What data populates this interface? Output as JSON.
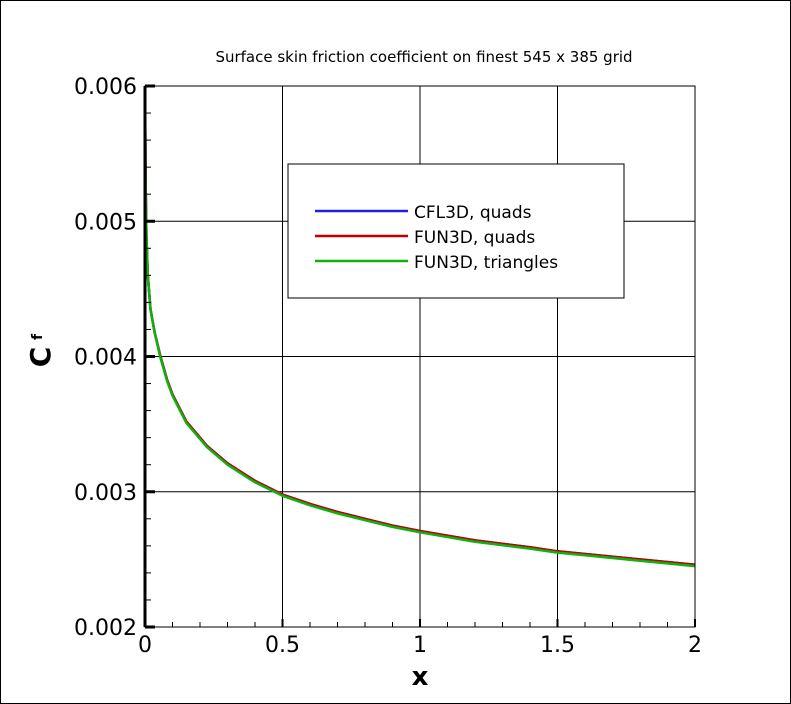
{
  "chart_data": {
    "type": "line",
    "title": "Surface skin friction coefficient on finest 545 x 385 grid",
    "xlabel": "x",
    "ylabel": "C",
    "ylabel_subscript": "f",
    "xlim": [
      0,
      2
    ],
    "ylim": [
      0.002,
      0.006
    ],
    "x_ticks": [
      "0",
      "0.5",
      "1",
      "1.5",
      "2"
    ],
    "y_ticks": [
      "0.002",
      "0.003",
      "0.004",
      "0.005",
      "0.006"
    ],
    "grid": true,
    "legend_position": "top-right",
    "series": [
      {
        "name": "CFL3D, quads",
        "color": "#2020e0",
        "x": [
          0.0,
          0.002,
          0.005,
          0.01,
          0.02,
          0.035,
          0.055,
          0.08,
          0.1,
          0.15,
          0.225,
          0.3,
          0.4,
          0.5,
          0.6,
          0.7,
          0.8,
          0.9,
          1.0,
          1.2,
          1.4,
          1.5,
          1.6,
          1.8,
          2.0
        ],
        "y": [
          0.006,
          0.0053,
          0.0049,
          0.0046,
          0.00435,
          0.00418,
          0.00401,
          0.00383,
          0.00372,
          0.00352,
          0.00334,
          0.00321,
          0.00308,
          0.00298,
          0.00291,
          0.00285,
          0.0028,
          0.00275,
          0.00271,
          0.00264,
          0.00259,
          0.00256,
          0.00254,
          0.0025,
          0.00246
        ]
      },
      {
        "name": "FUN3D, quads",
        "color": "#c00000",
        "x": [
          0.0,
          0.002,
          0.005,
          0.01,
          0.02,
          0.035,
          0.055,
          0.08,
          0.1,
          0.15,
          0.225,
          0.3,
          0.4,
          0.5,
          0.6,
          0.7,
          0.8,
          0.9,
          1.0,
          1.2,
          1.4,
          1.5,
          1.6,
          1.8,
          2.0
        ],
        "y": [
          0.006,
          0.0053,
          0.0049,
          0.0046,
          0.00435,
          0.00418,
          0.00401,
          0.00383,
          0.00372,
          0.00352,
          0.00334,
          0.00321,
          0.00308,
          0.00298,
          0.00291,
          0.00285,
          0.0028,
          0.00275,
          0.00271,
          0.00264,
          0.00259,
          0.00256,
          0.00254,
          0.0025,
          0.00246
        ]
      },
      {
        "name": "FUN3D, triangles",
        "color": "#10b010",
        "x": [
          0.0,
          0.002,
          0.005,
          0.01,
          0.02,
          0.035,
          0.055,
          0.08,
          0.1,
          0.15,
          0.225,
          0.3,
          0.4,
          0.5,
          0.6,
          0.7,
          0.8,
          0.9,
          1.0,
          1.2,
          1.4,
          1.5,
          1.6,
          1.8,
          2.0
        ],
        "y": [
          0.006,
          0.0053,
          0.0049,
          0.0046,
          0.00435,
          0.00418,
          0.004,
          0.00382,
          0.00371,
          0.00351,
          0.00333,
          0.0032,
          0.00307,
          0.00297,
          0.0029,
          0.00284,
          0.00279,
          0.00274,
          0.0027,
          0.00263,
          0.00258,
          0.00255,
          0.00253,
          0.00249,
          0.00245
        ]
      }
    ]
  }
}
